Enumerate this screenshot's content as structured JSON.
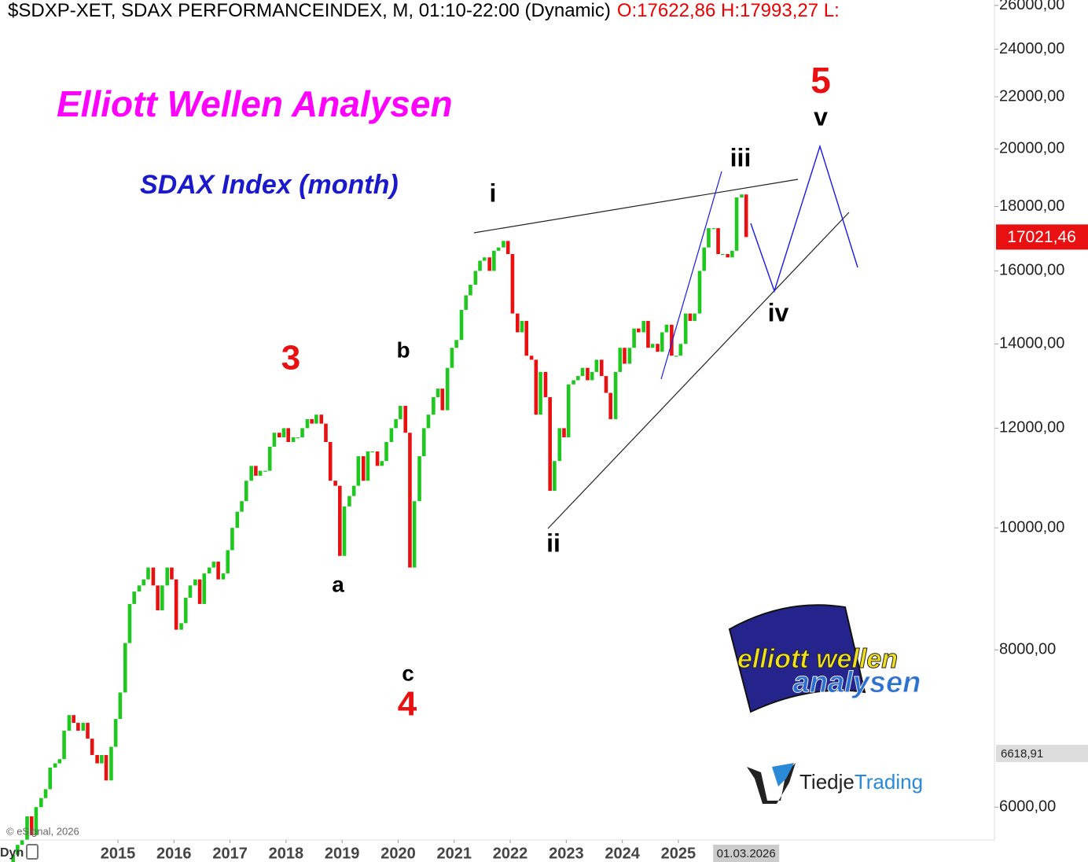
{
  "chart_data": {
    "type": "candlestick",
    "title": "$SDXP-XET, SDAX PERFORMANCEINDEX, M, 01:10-22:00 (Dynamic)",
    "ohlc_text": "O:17622,86 H:17993,27 L:",
    "headline": "Elliott Wellen Analysen",
    "subtitle": "SDAX Index (month)",
    "wave_labels": [
      "3",
      "a",
      "b",
      "c",
      "4",
      "i",
      "ii",
      "iii",
      "iv",
      "5",
      "v"
    ],
    "copyright": "© eSignal, 2026",
    "corner_label": "Dyn",
    "logo_text": [
      "elliott wellen",
      "analysen"
    ],
    "brand": [
      "Tiedje",
      "Trading"
    ],
    "last_price": {
      "value": 17021.46,
      "label": "17021,46"
    },
    "marker_price": {
      "value": 6618.91,
      "label": "6618,91"
    },
    "date_tag": "01.03.2026",
    "log_scale": true,
    "up_color": "#1ec81e",
    "down_color": "#e81010",
    "xlim": [
      2012.896,
      2030.64
    ],
    "xticks": [
      2015,
      2016,
      2017,
      2018,
      2019,
      2020,
      2021,
      2022,
      2023,
      2024,
      2025
    ],
    "ylim": [
      5650,
      26260
    ],
    "yticks": [
      {
        "value": 6000,
        "label": "6000,00"
      },
      {
        "value": 8000,
        "label": "8000,00"
      },
      {
        "value": 10000,
        "label": "10000,00"
      },
      {
        "value": 12000,
        "label": "12000,00"
      },
      {
        "value": 14000,
        "label": "14000,00"
      },
      {
        "value": 16000,
        "label": "16000,00"
      },
      {
        "value": 18000,
        "label": "18000,00"
      },
      {
        "value": 20000,
        "label": "20000,00"
      },
      {
        "value": 22000,
        "label": "22000,00"
      },
      {
        "value": 24000,
        "label": "24000,00"
      },
      {
        "value": 26000,
        "label": "26000,00"
      }
    ],
    "x": [
      2013.04,
      2013.13,
      2013.21,
      2013.29,
      2013.38,
      2013.46,
      2013.54,
      2013.63,
      2013.71,
      2013.79,
      2013.88,
      2013.96,
      2014.04,
      2014.13,
      2014.21,
      2014.29,
      2014.38,
      2014.46,
      2014.54,
      2014.63,
      2014.71,
      2014.79,
      2014.88,
      2014.96,
      2015.04,
      2015.13,
      2015.21,
      2015.29,
      2015.38,
      2015.46,
      2015.54,
      2015.63,
      2015.71,
      2015.79,
      2015.88,
      2015.96,
      2016.04,
      2016.13,
      2016.21,
      2016.29,
      2016.38,
      2016.46,
      2016.54,
      2016.63,
      2016.71,
      2016.79,
      2016.88,
      2016.96,
      2017.04,
      2017.13,
      2017.21,
      2017.29,
      2017.38,
      2017.46,
      2017.54,
      2017.63,
      2017.71,
      2017.79,
      2017.88,
      2017.96,
      2018.04,
      2018.13,
      2018.21,
      2018.29,
      2018.38,
      2018.46,
      2018.54,
      2018.63,
      2018.71,
      2018.79,
      2018.88,
      2018.96,
      2019.04,
      2019.13,
      2019.21,
      2019.29,
      2019.38,
      2019.46,
      2019.54,
      2019.63,
      2019.71,
      2019.79,
      2019.88,
      2019.96,
      2020.04,
      2020.13,
      2020.21,
      2020.29,
      2020.38,
      2020.46,
      2020.54,
      2020.63,
      2020.71,
      2020.79,
      2020.88,
      2020.96,
      2021.04,
      2021.13,
      2021.21,
      2021.29,
      2021.38,
      2021.46,
      2021.54,
      2021.63,
      2021.71,
      2021.79,
      2021.88,
      2021.96,
      2022.04,
      2022.13,
      2022.21,
      2022.29,
      2022.38,
      2022.46,
      2022.54,
      2022.63,
      2022.71,
      2022.79,
      2022.88,
      2022.96,
      2023.04,
      2023.13,
      2023.21,
      2023.29,
      2023.38,
      2023.46,
      2023.54,
      2023.63,
      2023.71,
      2023.79,
      2023.88,
      2023.96,
      2024.04,
      2024.13,
      2024.21,
      2024.29,
      2024.38,
      2024.46,
      2024.54,
      2024.63,
      2024.71,
      2024.79,
      2024.88,
      2024.96,
      2025.04,
      2025.13,
      2025.21,
      2025.29,
      2025.38,
      2025.46,
      2025.54,
      2025.63,
      2025.71,
      2025.79,
      2025.88,
      2025.96,
      2026.04,
      2026.13,
      2026.21
    ],
    "close": [
      5400,
      5500,
      5600,
      5650,
      5900,
      5700,
      6000,
      6100,
      6200,
      6450,
      6500,
      6550,
      6900,
      7100,
      7000,
      6900,
      7000,
      6800,
      6600,
      6500,
      6600,
      6300,
      6700,
      7050,
      7400,
      8100,
      8700,
      8900,
      9000,
      9100,
      9300,
      9000,
      8600,
      9000,
      9300,
      9100,
      8300,
      8400,
      8800,
      9000,
      9100,
      8700,
      9200,
      9300,
      9400,
      9100,
      9200,
      9600,
      10000,
      10300,
      10500,
      10900,
      11200,
      11000,
      11100,
      11100,
      11600,
      11900,
      11800,
      12000,
      11700,
      11800,
      11800,
      12000,
      12200,
      12100,
      12300,
      12100,
      11700,
      10900,
      10800,
      9500,
      10400,
      10600,
      10800,
      11400,
      10900,
      11500,
      11500,
      11200,
      11300,
      11700,
      12000,
      12200,
      12500,
      11900,
      9300,
      10500,
      11400,
      12000,
      12300,
      12700,
      12900,
      12400,
      13400,
      13900,
      14100,
      14900,
      15300,
      15600,
      16000,
      16300,
      16400,
      16000,
      16600,
      16700,
      16900,
      16500,
      14800,
      14300,
      14600,
      13700,
      13600,
      12300,
      13300,
      12700,
      10700,
      11300,
      12000,
      11800,
      13000,
      13100,
      13200,
      13400,
      13100,
      13300,
      13600,
      13200,
      12800,
      12200,
      13300,
      13900,
      13500,
      13900,
      14400,
      14300,
      14600,
      13900,
      14000,
      13800,
      14300,
      14500,
      13700,
      13700,
      14000,
      14800,
      14600,
      14800,
      16000,
      16700,
      17300,
      17300,
      16500,
      16500,
      16400,
      16600,
      18300,
      18400,
      17021.46
    ]
  }
}
